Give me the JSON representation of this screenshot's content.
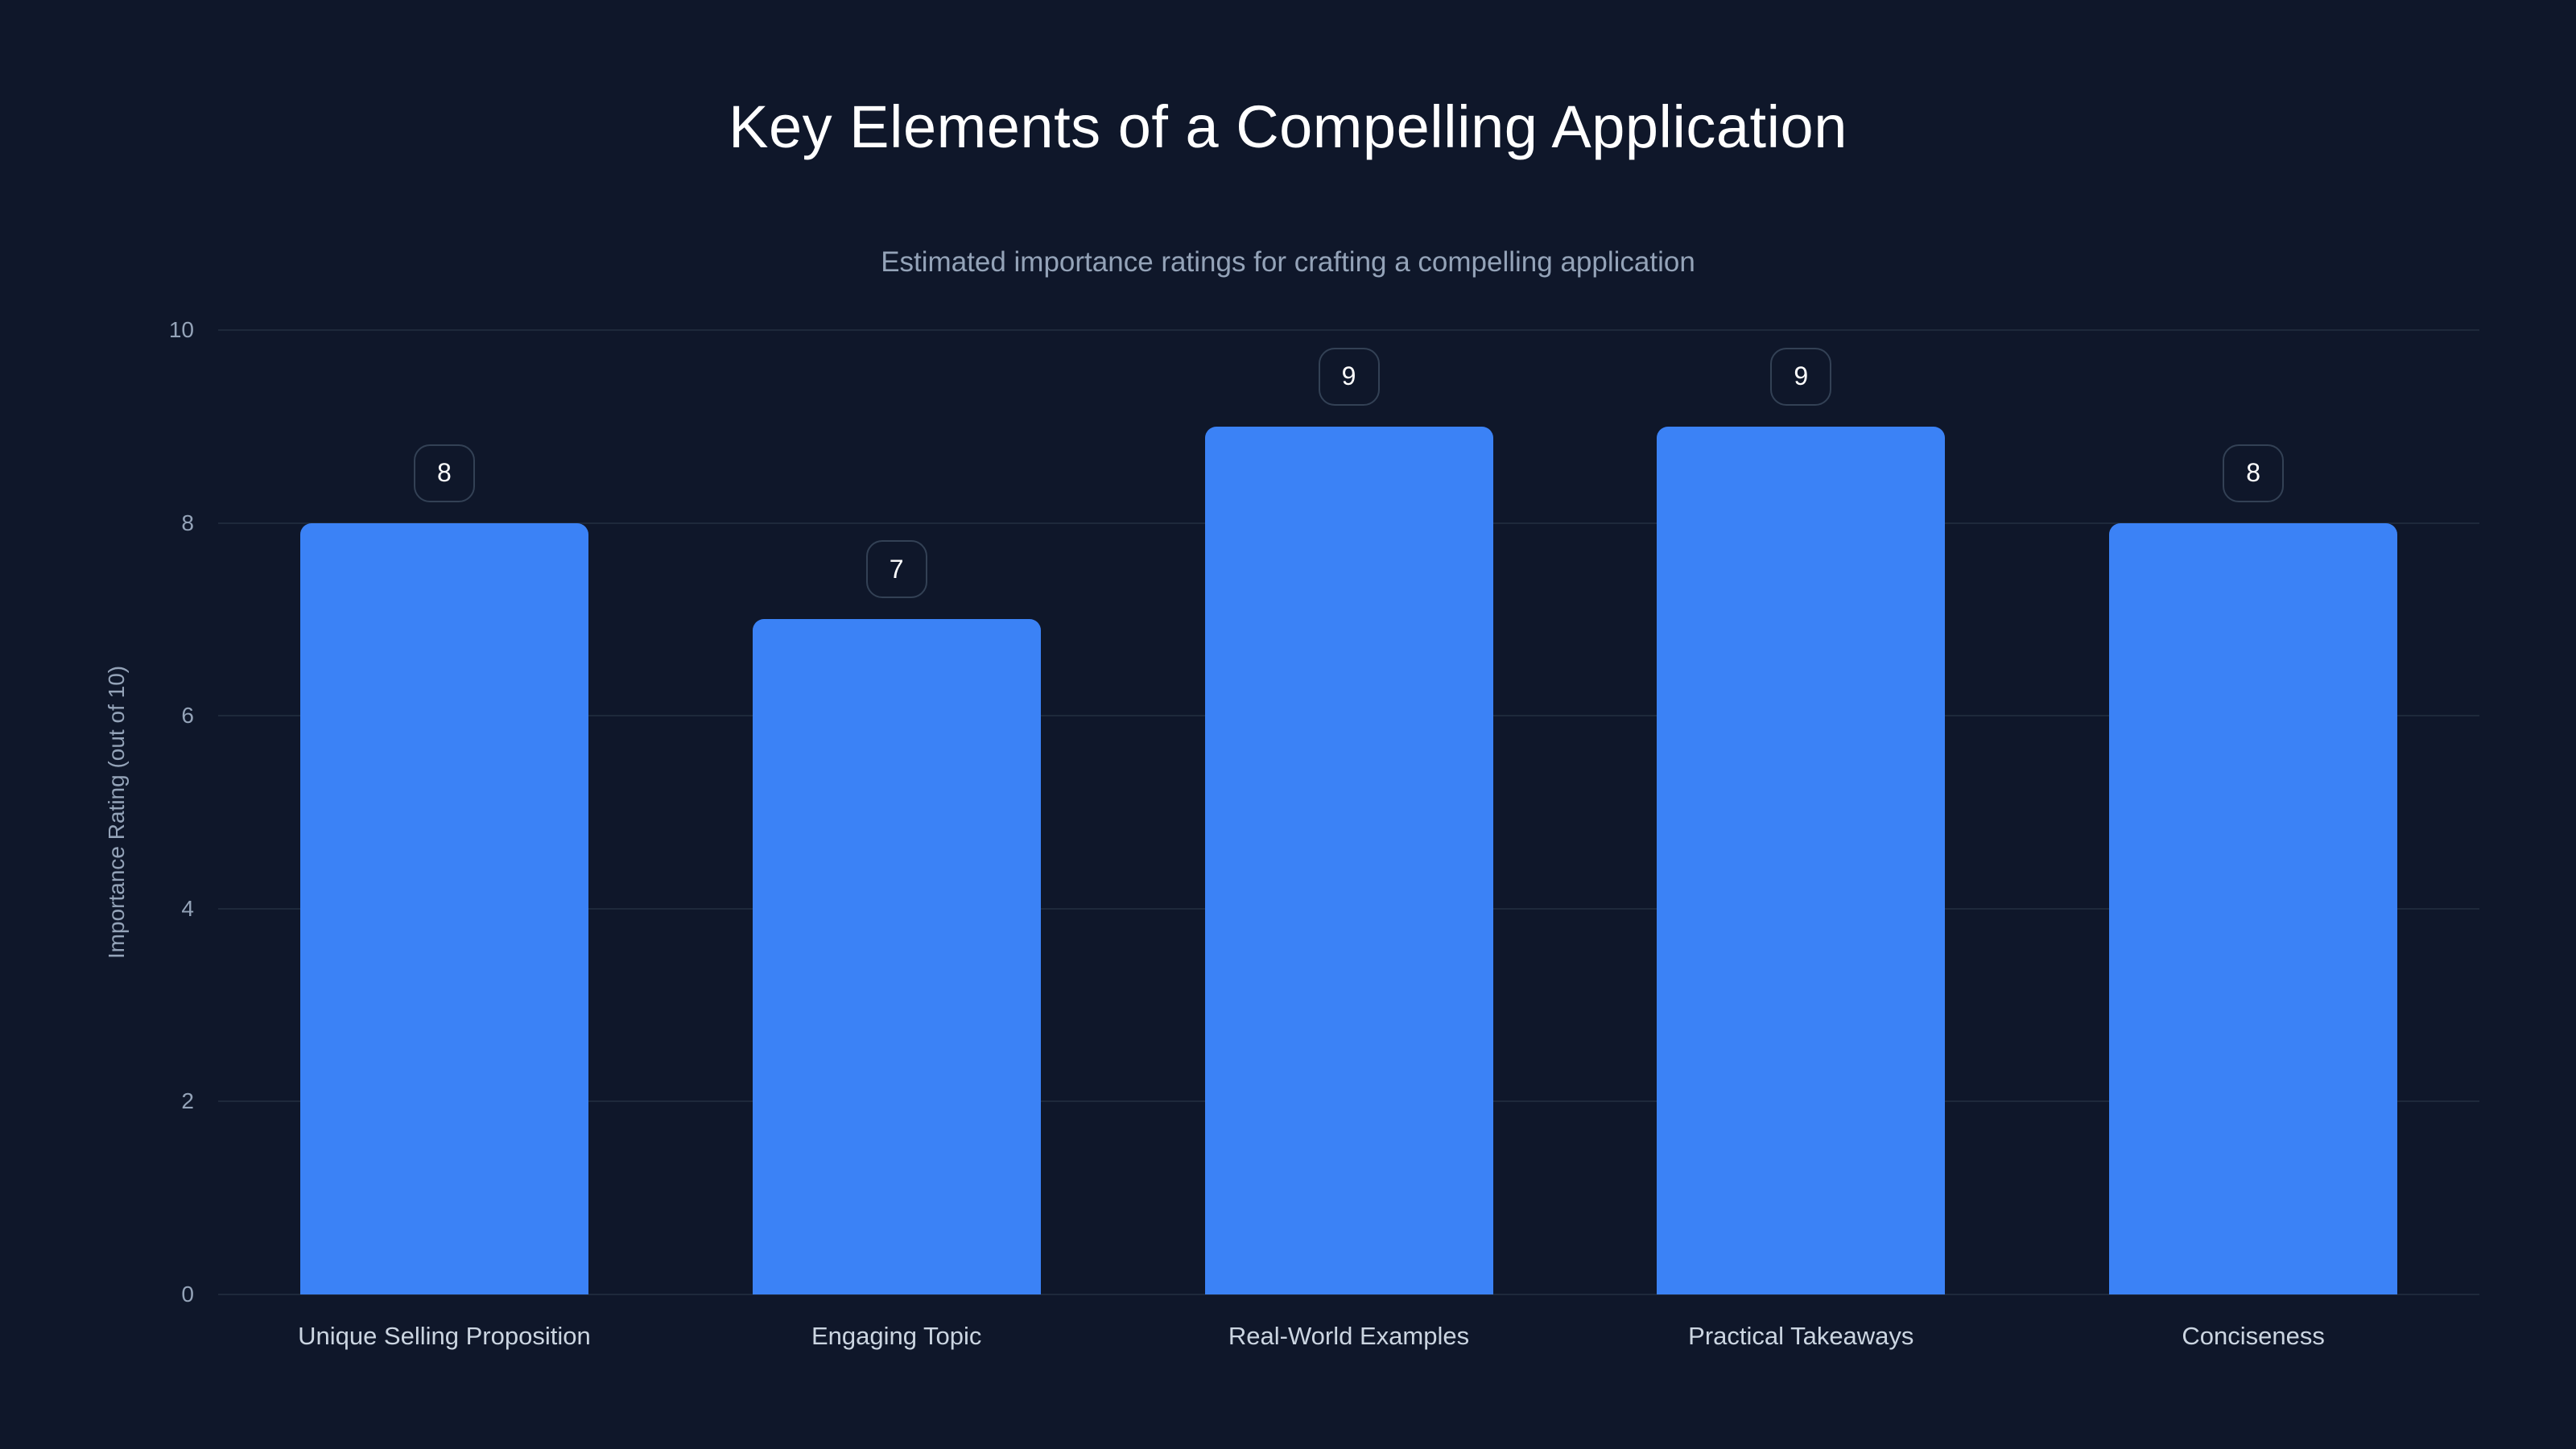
{
  "title": "Key Elements of a Compelling Application",
  "subtitle": "Estimated importance ratings for crafting a compelling application",
  "colors": {
    "background": "#0f172a",
    "bar": "#3b82f6",
    "grid": "#1e293b",
    "badge_border": "#334155",
    "axis_text": "#94a3b8",
    "category_text": "#cbd5e1"
  },
  "axis": {
    "ylabel": "Importance Rating (out of 10)",
    "yticks": [
      "0",
      "2",
      "4",
      "6",
      "8",
      "10"
    ]
  },
  "chart_data": {
    "type": "bar",
    "title": "Key Elements of a Compelling Application",
    "subtitle": "Estimated importance ratings for crafting a compelling application",
    "categories": [
      "Unique Selling Proposition",
      "Engaging Topic",
      "Real-World Examples",
      "Practical Takeaways",
      "Conciseness"
    ],
    "values": [
      8,
      7,
      9,
      9,
      8
    ],
    "xlabel": "",
    "ylabel": "Importance Rating (out of 10)",
    "ylim": [
      0,
      10
    ],
    "yticks": [
      0,
      2,
      4,
      6,
      8,
      10
    ],
    "grid": true,
    "legend": null,
    "data_labels": true
  }
}
